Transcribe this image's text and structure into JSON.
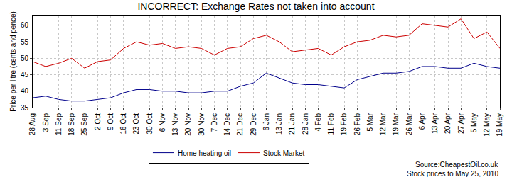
{
  "chart_data": {
    "type": "line",
    "title": "INCORRECT: Exchange Rates not taken into account",
    "y_label": "Price per litre (cents and pence)",
    "annotations": [
      "Source:CheapestOil.co.uk",
      "Stock prices to May 25, 2010"
    ],
    "categories": [
      "28 Aug",
      "3 Sep",
      "11 Sep",
      "18 Sep",
      "25 Sep",
      "2 Oct",
      "9 Oct",
      "16 Oct",
      "23 Oct",
      "30 Oct",
      "6 Nov",
      "13 Nov",
      "20 Nov",
      "30 Nov",
      "7 Dec",
      "14 Dec",
      "21 Dec",
      "29 Dec",
      "6 Jan",
      "13 Jan",
      "21 Jan",
      "28 Jan",
      "4 Feb",
      "11 Feb",
      "19 Feb",
      "26 Feb",
      "5 Mar",
      "12 Mar",
      "19 Mar",
      "26 Mar",
      "6 Apr",
      "13 Apr",
      "20 Apr",
      "27 Apr",
      "5 May",
      "12 May",
      "19 May"
    ],
    "series": [
      {
        "name": "Home heating oil",
        "color": "#00008b",
        "values": [
          38,
          38.5,
          37.5,
          37,
          37,
          37.5,
          38,
          39.5,
          40.5,
          40.5,
          40,
          40,
          39.5,
          39.5,
          40,
          40,
          41.5,
          42.5,
          45.5,
          44,
          42.5,
          42,
          42,
          41.5,
          41,
          43.5,
          44.5,
          45.5,
          45.5,
          46,
          47.5,
          47.5,
          47,
          47,
          48.5,
          47.5,
          47
        ]
      },
      {
        "name": "Stock Market",
        "color": "#cc0000",
        "values": [
          49,
          47.5,
          48.5,
          50,
          47,
          49,
          49.5,
          53,
          55,
          54,
          54.5,
          53,
          53.5,
          53,
          51,
          53,
          53.5,
          56,
          57,
          55,
          52,
          52.5,
          53,
          51,
          53.5,
          55,
          55.5,
          57,
          56.5,
          57,
          60.5,
          60,
          59.5,
          62,
          56,
          58,
          53
        ]
      }
    ],
    "ylim": [
      35,
      63
    ],
    "yticks": [
      35,
      40,
      45,
      50,
      55,
      60
    ],
    "grid": true,
    "legend": "bottom"
  }
}
